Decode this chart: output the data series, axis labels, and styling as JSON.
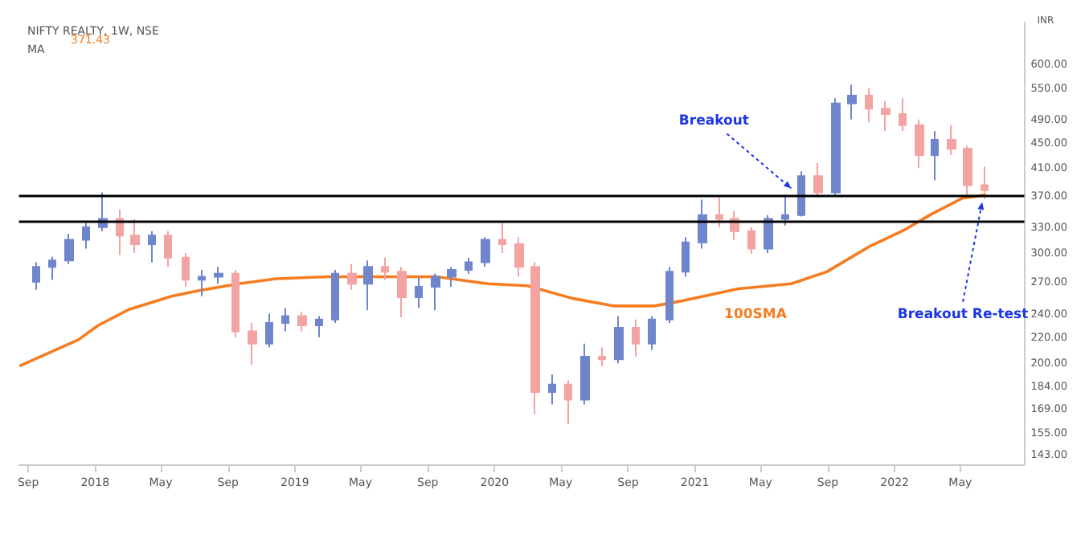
{
  "chart_data": {
    "type": "candlestick",
    "title": "NIFTY REALTY, 1W, NSE",
    "ylabel": "INR",
    "log": "y",
    "marker": "none",
    "grid": false,
    "legend": "top left",
    "xlim": [
      "2017-08-15",
      "2022-08-26"
    ],
    "xticks": [
      {
        "value": "2017-09-01",
        "label": "Sep"
      },
      {
        "value": "2018-01-01",
        "label": "2018"
      },
      {
        "value": "2018-05-01",
        "label": "May"
      },
      {
        "value": "2018-09-01",
        "label": "Sep"
      },
      {
        "value": "2019-01-01",
        "label": "2019"
      },
      {
        "value": "2019-05-01",
        "label": "May"
      },
      {
        "value": "2019-09-01",
        "label": "Sep"
      },
      {
        "value": "2020-01-01",
        "label": "2020"
      },
      {
        "value": "2020-05-01",
        "label": "May"
      },
      {
        "value": "2020-09-01",
        "label": "Sep"
      },
      {
        "value": "2021-01-01",
        "label": "2021"
      },
      {
        "value": "2021-05-01",
        "label": "May"
      },
      {
        "value": "2021-09-01",
        "label": "Sep"
      },
      {
        "value": "2022-01-01",
        "label": "2022"
      },
      {
        "value": "2022-05-01",
        "label": "May"
      }
    ],
    "ylim": [
      138,
      700
    ],
    "yticks": [
      {
        "value": 143,
        "label": "143.00"
      },
      {
        "value": 155,
        "label": "155.00"
      },
      {
        "value": 169,
        "label": "169.00"
      },
      {
        "value": 184,
        "label": "184.00"
      },
      {
        "value": 200,
        "label": "200.00"
      },
      {
        "value": 220,
        "label": "220.00"
      },
      {
        "value": 240,
        "label": "240.00"
      },
      {
        "value": 270,
        "label": "270.00"
      },
      {
        "value": 300,
        "label": "300.00"
      },
      {
        "value": 330,
        "label": "330.00"
      },
      {
        "value": 370,
        "label": "370.00"
      },
      {
        "value": 410,
        "label": "410.00"
      },
      {
        "value": 450,
        "label": "450.00"
      },
      {
        "value": 490,
        "label": "490.00"
      },
      {
        "value": 550,
        "label": "550.00"
      },
      {
        "value": 600,
        "label": "600.00"
      }
    ],
    "x": [
      "2017-09-15",
      "2017-10-15",
      "2017-11-15",
      "2017-12-15",
      "2018-01-15",
      "2018-02-15",
      "2018-03-15",
      "2018-04-15",
      "2018-05-15",
      "2018-06-15",
      "2018-07-15",
      "2018-08-15",
      "2018-09-15",
      "2018-10-15",
      "2018-11-15",
      "2018-12-15",
      "2019-01-15",
      "2019-02-15",
      "2019-03-15",
      "2019-04-15",
      "2019-05-15",
      "2019-06-15",
      "2019-07-15",
      "2019-08-15",
      "2019-09-15",
      "2019-10-15",
      "2019-11-15",
      "2019-12-15",
      "2020-01-15",
      "2020-02-15",
      "2020-03-15",
      "2020-04-15",
      "2020-05-15",
      "2020-06-15",
      "2020-07-15",
      "2020-08-15",
      "2020-09-15",
      "2020-10-15",
      "2020-11-15",
      "2020-12-15",
      "2021-01-15",
      "2021-02-15",
      "2021-03-15",
      "2021-04-15",
      "2021-05-15",
      "2021-06-15",
      "2021-07-15",
      "2021-08-15",
      "2021-09-15",
      "2021-10-15",
      "2021-11-15",
      "2021-12-15",
      "2022-01-15",
      "2022-02-15",
      "2022-03-15",
      "2022-04-15",
      "2022-05-15",
      "2022-06-15"
    ],
    "ohlc": [
      [
        270,
        290,
        262,
        285
      ],
      [
        285,
        296,
        272,
        292
      ],
      [
        292,
        322,
        288,
        315
      ],
      [
        315,
        335,
        305,
        330
      ],
      [
        330,
        375,
        325,
        340
      ],
      [
        340,
        352,
        298,
        320
      ],
      [
        320,
        340,
        300,
        310
      ],
      [
        310,
        325,
        290,
        320
      ],
      [
        320,
        325,
        285,
        295
      ],
      [
        295,
        300,
        265,
        272
      ],
      [
        272,
        282,
        256,
        275
      ],
      [
        275,
        285,
        268,
        278
      ],
      [
        278,
        282,
        220,
        225
      ],
      [
        225,
        232,
        199,
        215
      ],
      [
        215,
        240,
        212,
        232
      ],
      [
        232,
        245,
        225,
        238
      ],
      [
        238,
        242,
        225,
        230
      ],
      [
        230,
        238,
        220,
        235
      ],
      [
        235,
        282,
        232,
        278
      ],
      [
        278,
        288,
        262,
        268
      ],
      [
        268,
        292,
        243,
        285
      ],
      [
        285,
        295,
        272,
        280
      ],
      [
        280,
        285,
        237,
        255
      ],
      [
        255,
        275,
        245,
        265
      ],
      [
        265,
        278,
        243,
        275
      ],
      [
        275,
        285,
        265,
        282
      ],
      [
        282,
        295,
        278,
        290
      ],
      [
        290,
        318,
        285,
        315
      ],
      [
        315,
        335,
        300,
        310
      ],
      [
        310,
        318,
        275,
        285
      ],
      [
        285,
        290,
        166,
        180
      ],
      [
        180,
        192,
        172,
        185
      ],
      [
        185,
        188,
        160,
        175
      ],
      [
        175,
        215,
        172,
        205
      ],
      [
        205,
        212,
        198,
        203
      ],
      [
        203,
        238,
        200,
        228
      ],
      [
        228,
        235,
        205,
        215
      ],
      [
        215,
        238,
        210,
        235
      ],
      [
        235,
        285,
        232,
        280
      ],
      [
        280,
        318,
        275,
        312
      ],
      [
        312,
        365,
        305,
        345
      ],
      [
        345,
        368,
        330,
        340
      ],
      [
        340,
        350,
        315,
        325
      ],
      [
        325,
        330,
        299,
        305
      ],
      [
        305,
        345,
        300,
        340
      ],
      [
        340,
        372,
        332,
        345
      ],
      [
        345,
        405,
        343,
        398
      ],
      [
        398,
        418,
        368,
        375
      ],
      [
        375,
        530,
        372,
        520
      ],
      [
        520,
        557,
        490,
        535
      ],
      [
        535,
        550,
        485,
        510
      ],
      [
        510,
        525,
        470,
        500
      ],
      [
        500,
        530,
        470,
        480
      ],
      [
        480,
        490,
        410,
        430
      ],
      [
        430,
        470,
        392,
        455
      ],
      [
        455,
        480,
        430,
        440
      ],
      [
        440,
        445,
        371,
        385
      ],
      [
        385,
        412,
        366,
        378
      ]
    ],
    "colors": [
      "#6f86cc",
      "#6f86cc",
      "#6f86cc",
      "#6f86cc",
      "#6f86cc",
      "#f4a3a3",
      "#f4a3a3",
      "#6f86cc",
      "#f4a3a3",
      "#f4a3a3",
      "#6f86cc",
      "#6f86cc",
      "#f4a3a3",
      "#f4a3a3",
      "#6f86cc",
      "#6f86cc",
      "#f4a3a3",
      "#6f86cc",
      "#6f86cc",
      "#f4a3a3",
      "#6f86cc",
      "#f4a3a3",
      "#f4a3a3",
      "#6f86cc",
      "#6f86cc",
      "#6f86cc",
      "#6f86cc",
      "#6f86cc",
      "#f4a3a3",
      "#f4a3a3",
      "#f4a3a3",
      "#6f86cc",
      "#f4a3a3",
      "#6f86cc",
      "#f4a3a3",
      "#6f86cc",
      "#f4a3a3",
      "#6f86cc",
      "#6f86cc",
      "#6f86cc",
      "#6f86cc",
      "#f4a3a3",
      "#f4a3a3",
      "#f4a3a3",
      "#6f86cc",
      "#6f86cc",
      "#6f86cc",
      "#f4a3a3",
      "#6f86cc",
      "#6f86cc",
      "#f4a3a3",
      "#f4a3a3",
      "#f4a3a3",
      "#f4a3a3",
      "#6f86cc",
      "#f4a3a3",
      "#f4a3a3",
      "#f4a3a3"
    ],
    "series": [
      {
        "type": "line",
        "name": "MA",
        "color": "#f57c20",
        "x": [
          "2017-08-16",
          "2017-12-01",
          "2018-01-07",
          "2018-03-05",
          "2018-05-21",
          "2018-07-17",
          "2018-09-20",
          "2018-11-28",
          "2019-03-01",
          "2019-09-17",
          "2019-12-20",
          "2020-03-01",
          "2020-05-22",
          "2020-08-05",
          "2020-10-20",
          "2020-12-02",
          "2021-03-21",
          "2021-06-26",
          "2021-08-30",
          "2021-11-15",
          "2022-01-20",
          "2022-03-09",
          "2022-05-05",
          "2022-06-17"
        ],
        "values": [
          198,
          218,
          230,
          244,
          256,
          262,
          268,
          273,
          275,
          275,
          268,
          266,
          254,
          247,
          247,
          251,
          263,
          268,
          280,
          307,
          327,
          346,
          367,
          371.43
        ]
      }
    ],
    "ref_lines": [
      {
        "axis": "y",
        "value": 370,
        "color": "#000000"
      },
      {
        "axis": "y",
        "value": 337,
        "color": "#000000"
      }
    ],
    "annotations": [
      {
        "text": "Breakout",
        "x": "2021-06-26",
        "y": 376
      },
      {
        "text": "Breakout Re-test",
        "x": "2022-06-10",
        "y": 366
      },
      "100SMA",
      "371.43"
    ]
  }
}
